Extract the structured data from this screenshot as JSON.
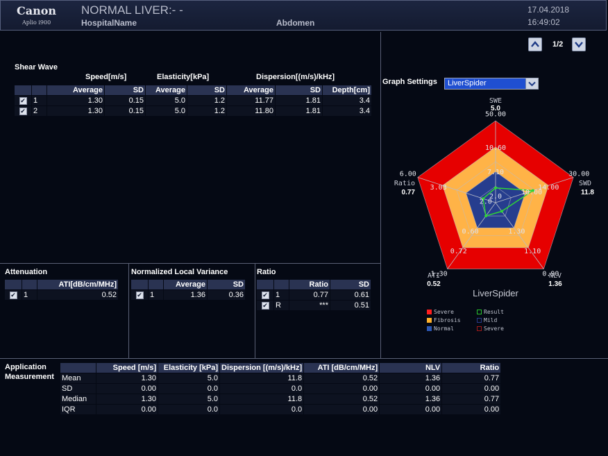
{
  "header": {
    "brand": "Canon",
    "model": "Aplio i900",
    "patient_title": "NORMAL LIVER:- -",
    "hospital": "HospitalName",
    "region": "Abdomen",
    "date": "17.04.2018",
    "time": "16:49:02"
  },
  "pager": {
    "label": "1/2"
  },
  "shear_wave": {
    "title": "Shear Wave",
    "groups": {
      "speed": "Speed[m/s]",
      "elasticity": "Elasticity[kPa]",
      "dispersion": "Dispersion[(m/s)/kHz]"
    },
    "columns": [
      "Average",
      "SD",
      "Average",
      "SD",
      "Average",
      "SD",
      "Depth[cm]"
    ],
    "rows": [
      {
        "checked": "✔",
        "id": "1",
        "values": [
          "1.30",
          "0.15",
          "5.0",
          "1.2",
          "11.77",
          "1.81",
          "3.4"
        ]
      },
      {
        "checked": "✔",
        "id": "2",
        "values": [
          "1.30",
          "0.15",
          "5.0",
          "1.2",
          "11.80",
          "1.81",
          "3.4"
        ]
      }
    ]
  },
  "attenuation": {
    "title": "Attenuation",
    "column": "ATI[dB/cm/MHz]",
    "rows": [
      {
        "checked": "✔",
        "id": "1",
        "value": "0.52"
      }
    ]
  },
  "nlv": {
    "title": "Normalized Local Variance",
    "columns": [
      "Average",
      "SD"
    ],
    "rows": [
      {
        "checked": "✔",
        "id": "1",
        "values": [
          "1.36",
          "0.36"
        ]
      }
    ]
  },
  "ratio": {
    "title": "Ratio",
    "columns": [
      "Ratio",
      "SD"
    ],
    "rows": [
      {
        "checked": "✔",
        "id": "1",
        "values": [
          "0.77",
          "0.61"
        ]
      },
      {
        "checked": "✔",
        "id": "R",
        "values": [
          "***",
          "0.51"
        ]
      }
    ]
  },
  "application": {
    "title_line1": "Application",
    "title_line2": "Measurement",
    "columns": [
      "Speed [m/s]",
      "Elasticity [kPa]",
      "Dispersion [(m/s)/kHz]",
      "ATI [dB/cm/MHz]",
      "NLV",
      "Ratio"
    ],
    "rows": [
      {
        "label": "Mean",
        "values": [
          "1.30",
          "5.0",
          "11.8",
          "0.52",
          "1.36",
          "0.77"
        ]
      },
      {
        "label": "SD",
        "values": [
          "0.00",
          "0.0",
          "0.0",
          "0.00",
          "0.00",
          "0.00"
        ]
      },
      {
        "label": "Median",
        "values": [
          "1.30",
          "5.0",
          "11.8",
          "0.52",
          "1.36",
          "0.77"
        ]
      },
      {
        "label": "IQR",
        "values": [
          "0.00",
          "0.0",
          "0.0",
          "0.00",
          "0.00",
          "0.00"
        ]
      }
    ]
  },
  "graph_settings": {
    "label": "Graph Settings",
    "selected": "LiverSpider"
  },
  "chart_data": {
    "type": "radar",
    "title": "LiverSpider",
    "axes": [
      {
        "name": "SWE",
        "value": "5.0",
        "ticks": [
          "50.00",
          "10.60",
          "7.10",
          "2.0"
        ]
      },
      {
        "name": "SWD",
        "value": "11.8",
        "ticks": [
          "30.00",
          "14.00",
          "10.00"
        ]
      },
      {
        "name": "NLV",
        "value": "1.36",
        "ticks": [
          "0.90",
          "1.10",
          "1.30"
        ]
      },
      {
        "name": "ATI",
        "value": "0.52",
        "ticks": [
          "1.30",
          "0.72",
          "0.60"
        ]
      },
      {
        "name": "Ratio",
        "value": "0.77",
        "ticks": [
          "6.00",
          "3.03",
          "2.0"
        ]
      }
    ],
    "zones": [
      "Severe",
      "Fibrosis",
      "Normal"
    ],
    "result_fractions": [
      0.18,
      0.48,
      0.13,
      0.2,
      0.16
    ],
    "legend": [
      {
        "label": "Severe",
        "color": "#ff1e1e"
      },
      {
        "label": "Fibrosis",
        "color": "#ffb12a"
      },
      {
        "label": "Normal",
        "color": "#2b57b3"
      },
      {
        "label": "Result",
        "color": "#29c42f"
      },
      {
        "label": "Mild",
        "color": "#2a3a8a"
      },
      {
        "label": "Severe",
        "color": "#a01a1a"
      }
    ],
    "colors": {
      "severe": "#e60000",
      "fibrosis": "#ffb347",
      "normal": "#263d8e",
      "result": "#2fd636",
      "web": "#b9bdc8"
    }
  }
}
